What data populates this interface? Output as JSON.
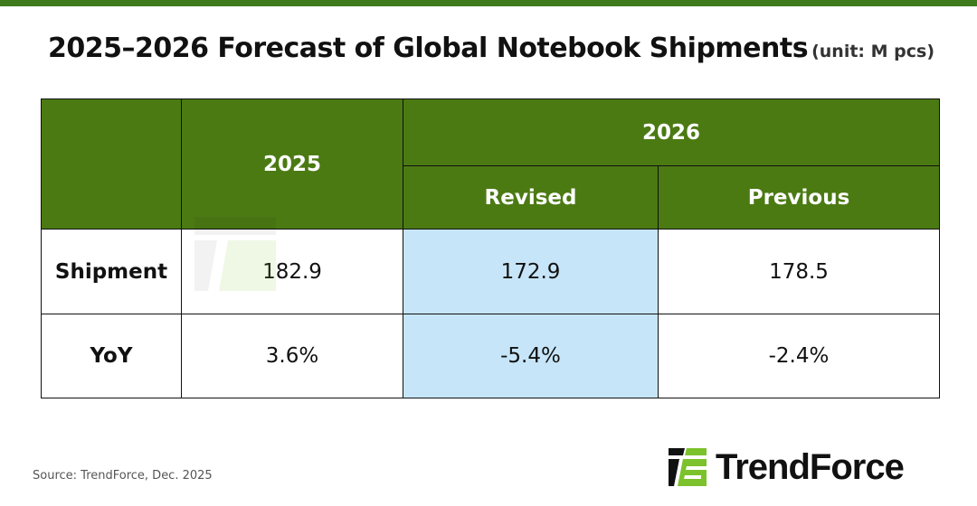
{
  "title": "2025–2026 Forecast of Global Notebook Shipments",
  "unit": "(unit: M pcs)",
  "colors": {
    "header_green": "#4b7a13",
    "highlight_blue": "#c6e5f8",
    "top_bar": "#3f7a1c",
    "logo_green": "#7cc22c"
  },
  "chart_data": {
    "type": "table",
    "title": "2025–2026 Forecast of Global Notebook Shipments",
    "unit": "(unit: M pcs)",
    "header": {
      "col_2025": "2025",
      "col_2026": "2026",
      "sub_revised": "Revised",
      "sub_previous": "Previous"
    },
    "rows": [
      {
        "label": "Shipment",
        "y2025": "182.9",
        "revised": "172.9",
        "previous": "178.5"
      },
      {
        "label": "YoY",
        "y2025": "3.6%",
        "revised": "-5.4%",
        "previous": "-2.4%"
      }
    ],
    "highlighted_column": "Revised"
  },
  "source": "Source: TrendForce, Dec. 2025",
  "logo": {
    "text": "TrendForce"
  }
}
